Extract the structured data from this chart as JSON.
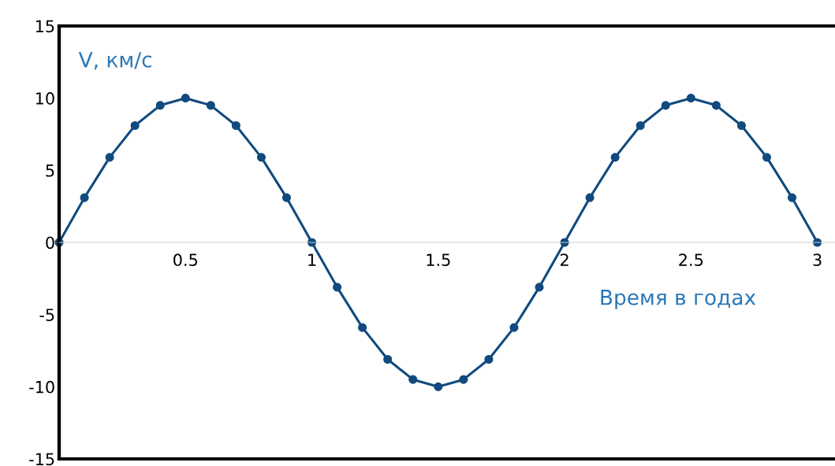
{
  "chart_data": {
    "type": "line",
    "xlabel": "Время в годах",
    "ylabel": "V, км/с",
    "x": [
      0,
      0.1,
      0.2,
      0.3,
      0.4,
      0.5,
      0.6,
      0.7,
      0.8,
      0.9,
      1,
      1.1,
      1.2,
      1.3,
      1.4,
      1.5,
      1.6,
      1.7,
      1.8,
      1.9,
      2,
      2.1,
      2.2,
      2.3,
      2.4,
      2.5,
      2.6,
      2.7,
      2.8,
      2.9,
      3
    ],
    "series": [
      {
        "color": "#114a7e",
        "values": [
          0,
          3.1,
          5.9,
          8.1,
          9.5,
          10,
          9.5,
          8.1,
          5.9,
          3.1,
          0,
          -3.1,
          -5.9,
          -8.1,
          -9.5,
          -10,
          -9.5,
          -8.1,
          -5.9,
          -3.1,
          0,
          3.1,
          5.9,
          8.1,
          9.5,
          10,
          9.5,
          8.1,
          5.9,
          3.1,
          0
        ]
      }
    ],
    "xlim": [
      0,
      3.07
    ],
    "xticks": [
      0.5,
      1,
      1.5,
      2,
      2.5,
      3
    ],
    "ylim": [
      -15,
      15
    ],
    "yticks": [
      -15,
      -10,
      -5,
      0,
      5,
      10,
      15
    ],
    "marker": "circle",
    "line_style": "solid",
    "grid": false
  }
}
